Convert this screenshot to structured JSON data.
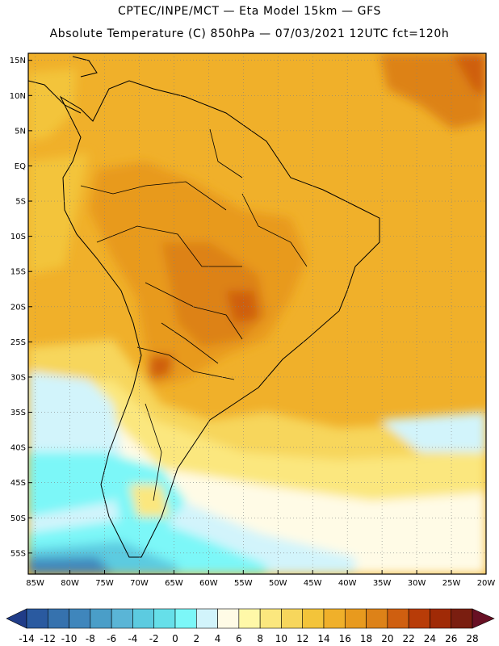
{
  "header": {
    "line1": "CPTEC/INPE/MCT —  Eta Model 15km — GFS",
    "line2": "Absolute Temperature (C) 850hPa — 07/03/2021 12UTC fct=120h"
  },
  "map": {
    "lat_labels": [
      "15N",
      "10N",
      "5N",
      "EQ",
      "5S",
      "10S",
      "15S",
      "20S",
      "25S",
      "30S",
      "35S",
      "40S",
      "45S",
      "50S",
      "55S"
    ],
    "lon_labels": [
      "85W",
      "80W",
      "75W",
      "70W",
      "65W",
      "60W",
      "55W",
      "50W",
      "45W",
      "40W",
      "35W",
      "30W",
      "25W",
      "20W"
    ],
    "lat_range": [
      -58,
      16
    ],
    "lon_range": [
      -86,
      -20
    ]
  },
  "colorbar": {
    "labels": [
      "-14",
      "-12",
      "-10",
      "-8",
      "-6",
      "-4",
      "-2",
      "0",
      "2",
      "4",
      "6",
      "8",
      "10",
      "12",
      "14",
      "16",
      "18",
      "20",
      "22",
      "24",
      "26",
      "28"
    ],
    "colors": [
      "#203c88",
      "#2a5aa0",
      "#3672ae",
      "#3f86bc",
      "#4a9ec8",
      "#5ab5d6",
      "#5ccbe0",
      "#66dfe9",
      "#7cf7f8",
      "#d2f4fb",
      "#fffbe6",
      "#fff8a8",
      "#fbe77e",
      "#f7d65c",
      "#f3c43a",
      "#f0b02a",
      "#e89a1e",
      "#dd8218",
      "#cf5f10",
      "#b83c08",
      "#a02a06",
      "#7a1e10",
      "#681024"
    ]
  }
}
